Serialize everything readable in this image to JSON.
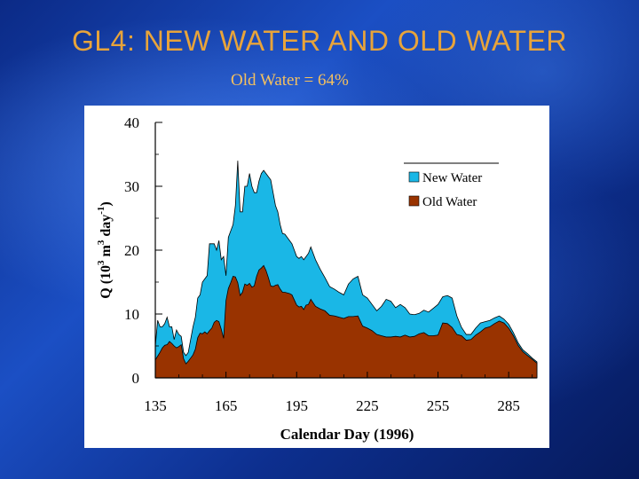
{
  "slide": {
    "title": "GL4: NEW WATER AND OLD WATER",
    "subtitle": "Old Water = 64%"
  },
  "chart_data": {
    "type": "area",
    "title": "",
    "xlabel": "Calendar Day (1996)",
    "ylabel_parts": {
      "q": "Q (10",
      "exp1": "3",
      "unit": " m",
      "exp2": "3",
      "day": " day",
      "exp3": "-1",
      "close": ")"
    },
    "xlim": [
      135,
      297
    ],
    "ylim": [
      0,
      40
    ],
    "x_ticks": [
      135,
      165,
      195,
      225,
      255,
      285
    ],
    "x_tick_labels": [
      "135",
      "165",
      "195",
      "225",
      "255",
      "285"
    ],
    "y_ticks": [
      0,
      10,
      20,
      30,
      40
    ],
    "y_tick_labels": [
      "0",
      "10",
      "20",
      "30",
      "40"
    ],
    "stacked": true,
    "legend_position": "top-right",
    "colors": {
      "new_water": "#1ab7e6",
      "old_water": "#993300"
    },
    "series": [
      {
        "name": "New Water",
        "x": [
          135,
          136,
          137,
          138,
          139,
          140,
          141,
          142,
          143,
          144,
          145,
          146,
          147,
          148,
          149,
          150,
          151,
          152,
          153,
          154,
          155,
          156,
          157,
          158,
          159,
          160,
          161,
          162,
          163,
          164,
          165,
          166,
          167,
          168,
          169,
          170,
          171,
          172,
          173,
          174,
          175,
          176,
          177,
          178,
          179,
          180,
          181,
          182,
          183,
          184,
          185,
          186,
          187,
          188,
          189,
          190,
          191,
          192,
          193,
          194,
          195,
          196,
          197,
          198,
          199,
          200,
          201,
          203,
          205,
          207,
          209,
          211,
          213,
          215,
          217,
          219,
          221,
          223,
          225,
          227,
          229,
          231,
          233,
          235,
          237,
          239,
          241,
          243,
          245,
          247,
          249,
          251,
          253,
          255,
          257,
          259,
          261,
          263,
          265,
          267,
          269,
          271,
          273,
          275,
          277,
          279,
          281,
          283,
          285,
          287,
          289,
          291,
          293,
          295,
          297
        ],
        "values": [
          2.2,
          5.6,
          4.0,
          3.3,
          3.4,
          4.3,
          2.3,
          2.6,
          1.0,
          2.8,
          1.9,
          1.3,
          1.0,
          1.3,
          1.4,
          2.9,
          4.4,
          5.0,
          6.2,
          6.0,
          8.1,
          8.3,
          9.1,
          13.6,
          13.2,
          12.3,
          11.0,
          12.7,
          10.9,
          12.8,
          3.9,
          8.0,
          8.1,
          8.1,
          11.2,
          19.1,
          13.1,
          12.6,
          15.3,
          15.5,
          17.2,
          15.8,
          14.6,
          13.1,
          13.9,
          14.8,
          14.9,
          15.2,
          15.8,
          16.6,
          14.7,
          12.5,
          11.4,
          10.1,
          9.2,
          9.1,
          8.7,
          8.3,
          8.0,
          7.8,
          7.6,
          7.6,
          7.8,
          7.8,
          7.6,
          8.0,
          8.2,
          7.3,
          6.2,
          5.2,
          4.5,
          4.2,
          3.9,
          3.7,
          5.1,
          5.9,
          6.2,
          4.9,
          4.7,
          4.1,
          3.7,
          4.6,
          5.9,
          5.6,
          4.5,
          5.1,
          4.3,
          3.6,
          3.4,
          3.2,
          3.5,
          3.7,
          4.3,
          4.8,
          4.1,
          4.4,
          4.6,
          2.9,
          1.3,
          0.9,
          0.8,
          1.1,
          1.4,
          1.0,
          1.0,
          0.9,
          0.8,
          0.6,
          0.6,
          0.5,
          0.4,
          0.3,
          0.3,
          0.2,
          0.2
        ]
      },
      {
        "name": "Old Water",
        "x": [
          135,
          136,
          137,
          138,
          139,
          140,
          141,
          142,
          143,
          144,
          145,
          146,
          147,
          148,
          149,
          150,
          151,
          152,
          153,
          154,
          155,
          156,
          157,
          158,
          159,
          160,
          161,
          162,
          163,
          164,
          165,
          166,
          167,
          168,
          169,
          170,
          171,
          172,
          173,
          174,
          175,
          176,
          177,
          178,
          179,
          180,
          181,
          182,
          183,
          184,
          185,
          186,
          187,
          188,
          189,
          190,
          191,
          192,
          193,
          194,
          195,
          196,
          197,
          198,
          199,
          200,
          201,
          203,
          205,
          207,
          209,
          211,
          213,
          215,
          217,
          219,
          221,
          223,
          225,
          227,
          229,
          231,
          233,
          235,
          237,
          239,
          241,
          243,
          245,
          247,
          249,
          251,
          253,
          255,
          257,
          259,
          261,
          263,
          265,
          267,
          269,
          271,
          273,
          275,
          277,
          279,
          281,
          283,
          285,
          287,
          289,
          291,
          293,
          295,
          297
        ],
        "values": [
          2.8,
          3.4,
          4.0,
          4.7,
          5.1,
          5.2,
          5.7,
          5.4,
          5.0,
          4.7,
          4.9,
          5.2,
          3.0,
          2.2,
          2.6,
          3.1,
          3.6,
          4.5,
          6.3,
          7.0,
          6.9,
          7.2,
          6.9,
          7.4,
          7.8,
          8.7,
          9.0,
          8.8,
          7.6,
          6.2,
          12.1,
          14.0,
          14.9,
          15.9,
          15.8,
          14.9,
          12.9,
          13.4,
          14.7,
          14.5,
          14.8,
          14.2,
          14.4,
          15.9,
          16.9,
          17.2,
          17.6,
          16.8,
          15.7,
          14.4,
          14.3,
          14.5,
          14.6,
          13.9,
          13.4,
          13.4,
          13.3,
          13.2,
          13.0,
          12.2,
          11.4,
          11.1,
          11.2,
          10.7,
          11.4,
          11.5,
          12.3,
          11.2,
          10.8,
          10.5,
          9.8,
          9.7,
          9.5,
          9.3,
          9.6,
          9.6,
          9.7,
          8.1,
          7.8,
          7.4,
          6.8,
          6.6,
          6.4,
          6.4,
          6.5,
          6.4,
          6.7,
          6.4,
          6.5,
          6.9,
          7.1,
          6.6,
          6.6,
          6.7,
          8.6,
          8.5,
          7.9,
          6.8,
          6.6,
          5.9,
          6.0,
          6.7,
          7.2,
          7.8,
          8.0,
          8.5,
          8.9,
          8.6,
          7.8,
          6.6,
          5.1,
          4.1,
          3.5,
          2.9,
          2.3
        ]
      }
    ]
  }
}
